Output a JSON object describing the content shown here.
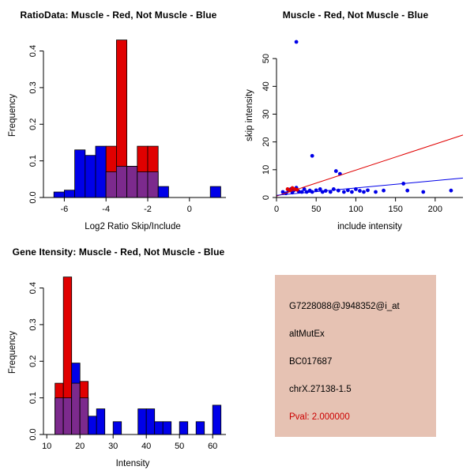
{
  "colors": {
    "muscle": "#e00000",
    "not_muscle": "#0000e8",
    "overlap": "#7c2a8d",
    "info_box_bg": "#e6c2b3",
    "pval_text": "#cc0000"
  },
  "info_box": {
    "lines": [
      "G7228088@J948352@i_at",
      "altMutEx",
      "BC017687",
      "chrX.27138-1.5"
    ],
    "pval": "Pval: 2.000000"
  },
  "chart_data": [
    {
      "type": "histogram-overlay",
      "id": "ratio",
      "title": "RatioData: Muscle - Red, Not Muscle - Blue",
      "xlabel": "Log2 Ratio Skip/Include",
      "ylabel": "Frequency",
      "legend": {
        "Muscle": "red",
        "Not Muscle": "blue"
      },
      "xlim": [
        -7,
        1.75
      ],
      "ylim": [
        0,
        0.44
      ],
      "xticks": [
        "-6",
        "-4",
        "-2",
        "0"
      ],
      "yticks": [
        "0.0",
        "0.1",
        "0.2",
        "0.3",
        "0.4"
      ],
      "bin_width": 0.5,
      "bins": [
        {
          "x": -6.5,
          "red": 0,
          "blue": 0.015
        },
        {
          "x": -6.0,
          "red": 0,
          "blue": 0.02
        },
        {
          "x": -5.5,
          "red": 0,
          "blue": 0.13
        },
        {
          "x": -5.0,
          "red": 0,
          "blue": 0.115
        },
        {
          "x": -4.5,
          "red": 0,
          "blue": 0.14
        },
        {
          "x": -4.0,
          "red": 0.14,
          "blue": 0.07
        },
        {
          "x": -3.5,
          "red": 0.43,
          "blue": 0.085
        },
        {
          "x": -3.0,
          "red": 0.085,
          "blue": 0.085
        },
        {
          "x": -2.5,
          "red": 0.14,
          "blue": 0.07
        },
        {
          "x": -2.0,
          "red": 0.14,
          "blue": 0.07
        },
        {
          "x": -1.5,
          "red": 0,
          "blue": 0.03
        },
        {
          "x": 1.0,
          "red": 0,
          "blue": 0.03
        }
      ]
    },
    {
      "type": "scatter",
      "id": "scatter",
      "title": "Muscle - Red, Not Muscle - Blue",
      "xlabel": "include intensity",
      "ylabel": "skip intensity",
      "xlim": [
        0,
        235
      ],
      "ylim": [
        0,
        58
      ],
      "xticks": [
        "0",
        "50",
        "100",
        "150",
        "200"
      ],
      "yticks": [
        "0",
        "10",
        "20",
        "30",
        "40",
        "50"
      ],
      "series": [
        {
          "name": "Not Muscle",
          "color_key": "not_muscle",
          "points": [
            [
              25,
              56
            ],
            [
              45,
              15
            ],
            [
              75,
              9.5
            ],
            [
              80,
              8.5
            ],
            [
              8,
              2
            ],
            [
              12,
              1.5
            ],
            [
              15,
              2.5
            ],
            [
              18,
              3
            ],
            [
              20,
              1.8
            ],
            [
              22,
              2.6
            ],
            [
              25,
              3.5
            ],
            [
              28,
              2.2
            ],
            [
              32,
              2
            ],
            [
              35,
              3
            ],
            [
              38,
              2
            ],
            [
              42,
              2.5
            ],
            [
              45,
              2
            ],
            [
              50,
              2.6
            ],
            [
              55,
              3
            ],
            [
              58,
              2
            ],
            [
              62,
              2.4
            ],
            [
              68,
              2
            ],
            [
              72,
              3
            ],
            [
              78,
              2.5
            ],
            [
              85,
              2
            ],
            [
              90,
              2.6
            ],
            [
              95,
              2
            ],
            [
              100,
              3
            ],
            [
              105,
              2.4
            ],
            [
              110,
              2
            ],
            [
              115,
              2.6
            ],
            [
              125,
              2
            ],
            [
              135,
              2.5
            ],
            [
              160,
              5
            ],
            [
              165,
              2.5
            ],
            [
              185,
              2
            ],
            [
              220,
              2.5
            ]
          ]
        },
        {
          "name": "Muscle",
          "color_key": "muscle",
          "points": [
            [
              14,
              3
            ],
            [
              17,
              2.6
            ],
            [
              20,
              3.4
            ],
            [
              23,
              3
            ],
            [
              26,
              2.8
            ]
          ]
        }
      ],
      "lines": [
        {
          "color_key": "muscle",
          "x1": 0,
          "y1": 0.5,
          "x2": 235,
          "y2": 22.5
        },
        {
          "color_key": "not_muscle",
          "x1": 0,
          "y1": 0.8,
          "x2": 235,
          "y2": 7
        }
      ]
    },
    {
      "type": "histogram-overlay",
      "id": "gene",
      "title": "Gene Itensity: Muscle - Red, Not Muscle - Blue",
      "xlabel": "Intensity",
      "ylabel": "Frequency",
      "legend": {
        "Muscle": "red",
        "Not Muscle": "blue"
      },
      "xlim": [
        9,
        64
      ],
      "ylim": [
        0,
        0.44
      ],
      "xticks": [
        "10",
        "20",
        "30",
        "40",
        "50",
        "60"
      ],
      "yticks": [
        "0.0",
        "0.1",
        "0.2",
        "0.3",
        "0.4"
      ],
      "bin_width": 2.5,
      "bins": [
        {
          "x": 12.5,
          "red": 0.14,
          "blue": 0.1
        },
        {
          "x": 15.0,
          "red": 0.43,
          "blue": 0.1
        },
        {
          "x": 17.5,
          "red": 0.14,
          "blue": 0.195
        },
        {
          "x": 20.0,
          "red": 0.145,
          "blue": 0.1
        },
        {
          "x": 22.5,
          "red": 0,
          "blue": 0.05
        },
        {
          "x": 25.0,
          "red": 0,
          "blue": 0.07
        },
        {
          "x": 30.0,
          "red": 0,
          "blue": 0.035
        },
        {
          "x": 37.5,
          "red": 0,
          "blue": 0.07
        },
        {
          "x": 40.0,
          "red": 0,
          "blue": 0.07
        },
        {
          "x": 42.5,
          "red": 0,
          "blue": 0.035
        },
        {
          "x": 45.0,
          "red": 0,
          "blue": 0.035
        },
        {
          "x": 50.0,
          "red": 0,
          "blue": 0.035
        },
        {
          "x": 55.0,
          "red": 0,
          "blue": 0.035
        },
        {
          "x": 60.0,
          "red": 0,
          "blue": 0.08
        }
      ]
    }
  ]
}
